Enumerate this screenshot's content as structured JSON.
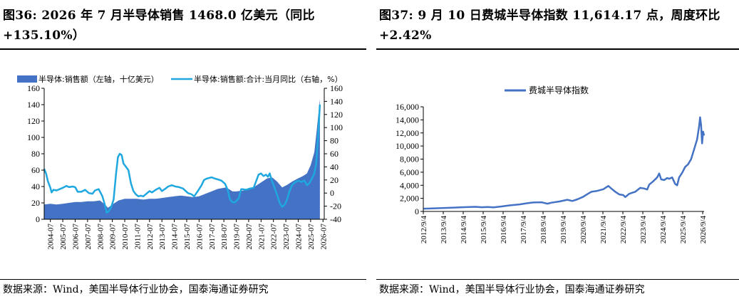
{
  "left": {
    "title": "图36:  2026 年 7 月半导体销售 1468.0 亿美元（同比+135.10%）",
    "source": "数据来源：Wind，美国半导体行业协会，国泰海通证券研究"
  },
  "right": {
    "title": "图37:  9 月 10 日费城半导体指数 11,614.17 点，周度环比+2.42%",
    "source": "数据来源：Wind，美国半导体行业协会，国泰海通证券研究"
  },
  "chart_data": [
    {
      "type": "area+line",
      "legend_placement": "top",
      "grid": false,
      "series": [
        {
          "name": "半导体:销售额（左轴，十亿美元）",
          "axis": "left",
          "color": "#4472C4",
          "points": [
            [
              2004.0,
              18
            ],
            [
              2004.5,
              19
            ],
            [
              2005.0,
              18
            ],
            [
              2005.5,
              19
            ],
            [
              2006.0,
              20
            ],
            [
              2006.5,
              21
            ],
            [
              2007.0,
              21
            ],
            [
              2007.5,
              22
            ],
            [
              2008.0,
              22
            ],
            [
              2008.5,
              23
            ],
            [
              2008.9,
              18
            ],
            [
              2009.15,
              14
            ],
            [
              2009.5,
              18
            ],
            [
              2010.0,
              23
            ],
            [
              2010.5,
              25
            ],
            [
              2011.0,
              25
            ],
            [
              2011.5,
              25
            ],
            [
              2012.0,
              24
            ],
            [
              2012.5,
              25
            ],
            [
              2013.0,
              25
            ],
            [
              2013.5,
              26
            ],
            [
              2014.0,
              27
            ],
            [
              2014.5,
              28
            ],
            [
              2015.0,
              29
            ],
            [
              2015.5,
              28
            ],
            [
              2016.0,
              27
            ],
            [
              2016.5,
              28
            ],
            [
              2017.0,
              31
            ],
            [
              2017.5,
              34
            ],
            [
              2018.0,
              37
            ],
            [
              2018.7,
              39
            ],
            [
              2019.2,
              34
            ],
            [
              2019.5,
              34
            ],
            [
              2020.0,
              35
            ],
            [
              2020.5,
              36
            ],
            [
              2021.0,
              40
            ],
            [
              2021.5,
              45
            ],
            [
              2022.0,
              50
            ],
            [
              2022.4,
              51
            ],
            [
              2022.8,
              46
            ],
            [
              2023.2,
              39
            ],
            [
              2023.6,
              42
            ],
            [
              2024.0,
              46
            ],
            [
              2024.5,
              50
            ],
            [
              2024.9,
              53
            ],
            [
              2025.2,
              56
            ],
            [
              2025.5,
              66
            ],
            [
              2025.8,
              82
            ],
            [
              2026.0,
              110
            ],
            [
              2026.25,
              146.8
            ]
          ]
        },
        {
          "name": "半导体:销售额:合计:当月同比（右轴，%）",
          "axis": "right",
          "color": "#1FA7E0",
          "points": [
            [
              2004.0,
              37
            ],
            [
              2004.15,
              30
            ],
            [
              2004.3,
              18
            ],
            [
              2004.5,
              8
            ],
            [
              2004.6,
              1
            ],
            [
              2004.75,
              5
            ],
            [
              2005.0,
              4
            ],
            [
              2005.5,
              8
            ],
            [
              2005.8,
              11
            ],
            [
              2006.0,
              9
            ],
            [
              2006.3,
              10
            ],
            [
              2006.5,
              9
            ],
            [
              2006.7,
              2
            ],
            [
              2007.0,
              2
            ],
            [
              2007.3,
              5
            ],
            [
              2007.6,
              0
            ],
            [
              2007.9,
              -1
            ],
            [
              2008.1,
              4
            ],
            [
              2008.4,
              6
            ],
            [
              2008.7,
              -5
            ],
            [
              2008.9,
              -18
            ],
            [
              2009.05,
              -30
            ],
            [
              2009.2,
              -28
            ],
            [
              2009.4,
              -22
            ],
            [
              2009.6,
              -10
            ],
            [
              2009.8,
              30
            ],
            [
              2009.95,
              55
            ],
            [
              2010.1,
              60
            ],
            [
              2010.25,
              58
            ],
            [
              2010.4,
              45
            ],
            [
              2010.6,
              40
            ],
            [
              2010.8,
              35
            ],
            [
              2011.0,
              15
            ],
            [
              2011.2,
              3
            ],
            [
              2011.4,
              -2
            ],
            [
              2011.6,
              -5
            ],
            [
              2011.8,
              -4
            ],
            [
              2012.0,
              -5
            ],
            [
              2012.25,
              -1
            ],
            [
              2012.5,
              3
            ],
            [
              2012.7,
              1
            ],
            [
              2013.0,
              5
            ],
            [
              2013.3,
              8
            ],
            [
              2013.5,
              3
            ],
            [
              2013.8,
              7
            ],
            [
              2014.0,
              10
            ],
            [
              2014.3,
              12
            ],
            [
              2014.6,
              10
            ],
            [
              2014.9,
              9
            ],
            [
              2015.2,
              7
            ],
            [
              2015.6,
              0
            ],
            [
              2015.9,
              -2
            ],
            [
              2016.1,
              -5
            ],
            [
              2016.4,
              3
            ],
            [
              2016.7,
              12
            ],
            [
              2016.9,
              20
            ],
            [
              2017.1,
              22
            ],
            [
              2017.5,
              24
            ],
            [
              2017.8,
              22
            ],
            [
              2018.0,
              21
            ],
            [
              2018.3,
              19
            ],
            [
              2018.6,
              14
            ],
            [
              2018.8,
              5
            ],
            [
              2019.0,
              -10
            ],
            [
              2019.2,
              -14
            ],
            [
              2019.4,
              -14
            ],
            [
              2019.7,
              -8
            ],
            [
              2019.9,
              6
            ],
            [
              2020.0,
              6
            ],
            [
              2020.3,
              5
            ],
            [
              2020.6,
              7
            ],
            [
              2020.9,
              8
            ],
            [
              2021.1,
              18
            ],
            [
              2021.3,
              28
            ],
            [
              2021.5,
              30
            ],
            [
              2021.7,
              26
            ],
            [
              2021.9,
              28
            ],
            [
              2022.05,
              25
            ],
            [
              2022.2,
              30
            ],
            [
              2022.35,
              20
            ],
            [
              2022.55,
              10
            ],
            [
              2022.8,
              -3
            ],
            [
              2023.0,
              -15
            ],
            [
              2023.2,
              -21
            ],
            [
              2023.4,
              -18
            ],
            [
              2023.6,
              -10
            ],
            [
              2023.8,
              3
            ],
            [
              2024.0,
              12
            ],
            [
              2024.2,
              16
            ],
            [
              2024.5,
              19
            ],
            [
              2024.75,
              17
            ],
            [
              2025.0,
              19
            ],
            [
              2025.2,
              12
            ],
            [
              2025.4,
              15
            ],
            [
              2025.6,
              22
            ],
            [
              2025.8,
              30
            ],
            [
              2025.95,
              45
            ],
            [
              2026.1,
              85
            ],
            [
              2026.25,
              135.1
            ]
          ]
        }
      ],
      "y_left": {
        "min": 0,
        "max": 160,
        "ticks": [
          0,
          20,
          40,
          60,
          80,
          100,
          120,
          140,
          160
        ]
      },
      "y_right": {
        "min": -40,
        "max": 160,
        "ticks": [
          -40,
          -20,
          0,
          20,
          40,
          60,
          80,
          100,
          120,
          140,
          160
        ]
      },
      "x_categories": [
        "2004-07",
        "2005-07",
        "2006-07",
        "2007-07",
        "2008-07",
        "2009-07",
        "2010-07",
        "2011-07",
        "2012-07",
        "2013-07",
        "2014-07",
        "2015-07",
        "2016-07",
        "2017-07",
        "2018-07",
        "2019-07",
        "2020-07",
        "2021-07",
        "2022-07",
        "2023-07",
        "2024-07",
        "2025-07",
        "2026-07"
      ]
    },
    {
      "type": "line",
      "legend_placement": "top",
      "grid": false,
      "series": [
        {
          "name": "费城半导体指数",
          "color": "#4472C4",
          "points": [
            [
              2012.7,
              420
            ],
            [
              2013.0,
              450
            ],
            [
              2013.5,
              500
            ],
            [
              2014.0,
              560
            ],
            [
              2014.5,
              620
            ],
            [
              2015.0,
              680
            ],
            [
              2015.3,
              710
            ],
            [
              2015.6,
              640
            ],
            [
              2015.9,
              670
            ],
            [
              2016.2,
              630
            ],
            [
              2016.6,
              760
            ],
            [
              2017.0,
              930
            ],
            [
              2017.5,
              1080
            ],
            [
              2017.9,
              1260
            ],
            [
              2018.2,
              1370
            ],
            [
              2018.6,
              1400
            ],
            [
              2018.9,
              1190
            ],
            [
              2019.1,
              1340
            ],
            [
              2019.5,
              1520
            ],
            [
              2019.9,
              1780
            ],
            [
              2020.15,
              1600
            ],
            [
              2020.4,
              1850
            ],
            [
              2020.7,
              2250
            ],
            [
              2020.9,
              2650
            ],
            [
              2021.1,
              3000
            ],
            [
              2021.4,
              3150
            ],
            [
              2021.7,
              3400
            ],
            [
              2021.95,
              3900
            ],
            [
              2022.1,
              3500
            ],
            [
              2022.3,
              3000
            ],
            [
              2022.5,
              2600
            ],
            [
              2022.7,
              2500
            ],
            [
              2022.8,
              2200
            ],
            [
              2023.0,
              2700
            ],
            [
              2023.3,
              3000
            ],
            [
              2023.55,
              3600
            ],
            [
              2023.75,
              3500
            ],
            [
              2023.9,
              3350
            ],
            [
              2024.0,
              4100
            ],
            [
              2024.2,
              4600
            ],
            [
              2024.4,
              5200
            ],
            [
              2024.5,
              5800
            ],
            [
              2024.6,
              4900
            ],
            [
              2024.75,
              4800
            ],
            [
              2024.9,
              5100
            ],
            [
              2025.0,
              5000
            ],
            [
              2025.15,
              5200
            ],
            [
              2025.3,
              4200
            ],
            [
              2025.4,
              4000
            ],
            [
              2025.5,
              5200
            ],
            [
              2025.65,
              5900
            ],
            [
              2025.8,
              6800
            ],
            [
              2025.95,
              7200
            ],
            [
              2026.1,
              8000
            ],
            [
              2026.25,
              9500
            ],
            [
              2026.4,
              11000
            ],
            [
              2026.5,
              13000
            ],
            [
              2026.55,
              14400
            ],
            [
              2026.6,
              13200
            ],
            [
              2026.65,
              10400
            ],
            [
              2026.7,
              12200
            ],
            [
              2026.75,
              11614.17
            ]
          ]
        }
      ],
      "y": {
        "min": 0,
        "max": 16000,
        "ticks": [
          "0",
          "2,000",
          "4,000",
          "6,000",
          "8,000",
          "10,000",
          "12,000",
          "14,000",
          "16,000"
        ]
      },
      "x_categories": [
        "2012/9/4",
        "2013/9/4",
        "2014/9/4",
        "2015/9/4",
        "2016/9/4",
        "2017/9/4",
        "2018/9/4",
        "2019/9/4",
        "2020/9/4",
        "2021/9/4",
        "2022/9/4",
        "2023/9/4",
        "2024/9/4",
        "2025/9/4",
        "2026/9/4"
      ]
    }
  ]
}
